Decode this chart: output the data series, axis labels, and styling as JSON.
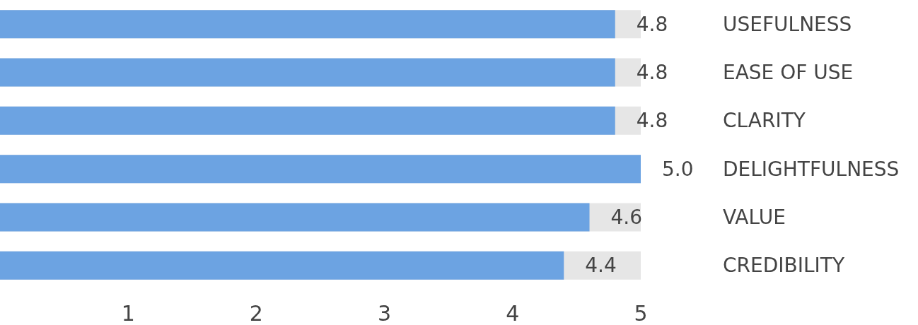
{
  "chart_data": {
    "type": "bar",
    "orientation": "horizontal",
    "categories": [
      "USEFULNESS",
      "EASE OF USE",
      "CLARITY",
      "DELIGHTFULNESS",
      "VALUE",
      "CREDIBILITY"
    ],
    "values": [
      4.8,
      4.8,
      4.8,
      5.0,
      4.6,
      4.4
    ],
    "value_labels": [
      "4.8",
      "4.8",
      "4.8",
      "5.0",
      "4.6",
      "4.4"
    ],
    "color": "#6ca3e2",
    "xlim": [
      0,
      5
    ],
    "xticks": [
      1,
      2,
      3,
      4,
      5
    ]
  }
}
